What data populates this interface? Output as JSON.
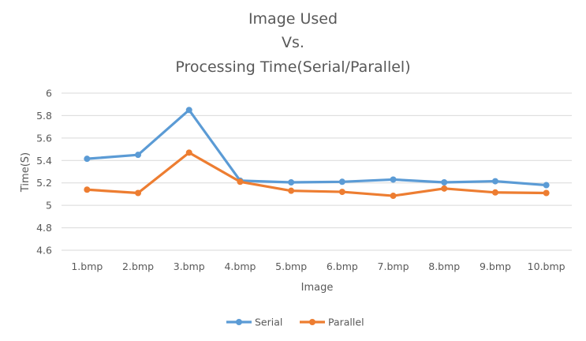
{
  "chart_data": {
    "type": "line",
    "title_lines": [
      "Image Used",
      "Vs.",
      "Processing Time(Serial/Parallel)"
    ],
    "xlabel": "Image",
    "ylabel": "Time(S)",
    "categories": [
      "1.bmp",
      "2.bmp",
      "3.bmp",
      "4.bmp",
      "5.bmp",
      "6.bmp",
      "7.bmp",
      "8.bmp",
      "9.bmp",
      "10.bmp"
    ],
    "y_ticks": [
      "4.6",
      "4.8",
      "5",
      "5.2",
      "5.4",
      "5.6",
      "5.8",
      "6"
    ],
    "ylim": [
      4.6,
      6
    ],
    "grid": true,
    "legend_position": "bottom",
    "series": [
      {
        "name": "Serial",
        "color": "#5b9bd5",
        "values": [
          5.415,
          5.45,
          5.85,
          5.22,
          5.205,
          5.21,
          5.23,
          5.205,
          5.215,
          5.18
        ]
      },
      {
        "name": "Parallel",
        "color": "#ed7d31",
        "values": [
          5.14,
          5.11,
          5.47,
          5.21,
          5.13,
          5.12,
          5.085,
          5.15,
          5.115,
          5.11
        ]
      }
    ]
  }
}
